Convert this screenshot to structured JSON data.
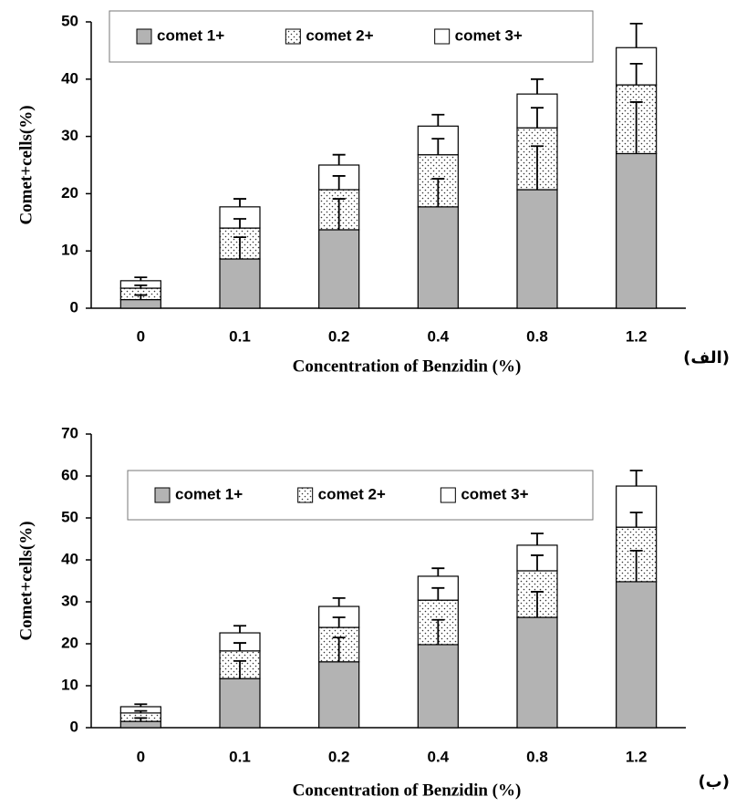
{
  "chart_data": [
    {
      "type": "bar",
      "stacked": true,
      "ylabel": "Comet+cells(%)",
      "xlabel": "Concentration of Benzidin (%)",
      "annotation": "(الف)",
      "categories": [
        "0",
        "0.1",
        "0.2",
        "0.4",
        "0.8",
        "1.2"
      ],
      "series": [
        {
          "name": "comet 1+",
          "color": "#b3b3b3",
          "values": [
            1.5,
            8.6,
            13.7,
            17.7,
            20.7,
            27
          ],
          "errors": [
            0.8,
            3.8,
            5.4,
            4.9,
            7.6,
            9
          ]
        },
        {
          "name": "comet 2+",
          "color": "#ffffff",
          "pattern": "dots",
          "values": [
            2,
            5.4,
            7,
            9.1,
            10.8,
            12
          ],
          "errors": [
            0.5,
            1.6,
            2.4,
            2.8,
            3.5,
            3.7
          ]
        },
        {
          "name": "comet 3+",
          "color": "#ffffff",
          "values": [
            1.3,
            3.7,
            4.3,
            5,
            5.9,
            6.5
          ],
          "errors": [
            0.6,
            1.4,
            1.8,
            2,
            2.6,
            4.2
          ]
        }
      ],
      "ylim": [
        0,
        50
      ],
      "yticks": [
        0,
        10,
        20,
        30,
        40,
        50
      ],
      "legend": "top"
    },
    {
      "type": "bar",
      "stacked": true,
      "ylabel": "Comet+cells(%)",
      "xlabel": "Concentration of Benzidin (%)",
      "annotation": "(ب)",
      "categories": [
        "0",
        "0.1",
        "0.2",
        "0.4",
        "0.8",
        "1.2"
      ],
      "series": [
        {
          "name": "comet 1+",
          "color": "#b3b3b3",
          "values": [
            1.5,
            11.7,
            15.7,
            19.8,
            26.3,
            34.8
          ],
          "errors": [
            0.8,
            4.2,
            5.8,
            5.9,
            6.1,
            7.4
          ]
        },
        {
          "name": "comet 2+",
          "color": "#ffffff",
          "pattern": "dots",
          "values": [
            2,
            6.6,
            8.2,
            10.6,
            11.1,
            13
          ],
          "errors": [
            0.5,
            1.9,
            2.4,
            2.9,
            3.7,
            3.5
          ]
        },
        {
          "name": "comet 3+",
          "color": "#ffffff",
          "values": [
            1.5,
            4.3,
            5,
            5.7,
            6.1,
            9.8
          ],
          "errors": [
            0.6,
            1.7,
            2,
            1.9,
            2.8,
            3.7
          ]
        }
      ],
      "ylim": [
        0,
        70
      ],
      "yticks": [
        0,
        10,
        20,
        30,
        40,
        50,
        60,
        70
      ],
      "legend": "top"
    }
  ]
}
